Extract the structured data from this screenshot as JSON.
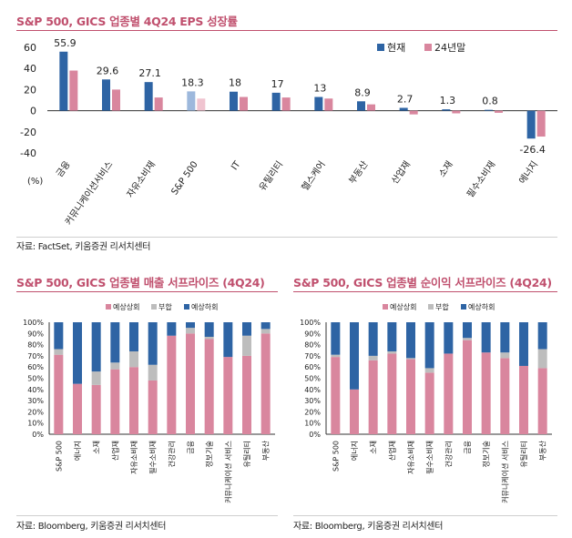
{
  "chart1": {
    "title": "S&P 500, GICS 업종별 4Q24 EPS 성장률",
    "source": "자료: FactSet, 키움증권 리서치센터",
    "y_unit": "(%)",
    "colors": {
      "current": "#2e64a4",
      "end24": "#d9869e",
      "sp_current": "#9db8dc",
      "sp_end24": "#f0c4d0"
    },
    "chart_data": {
      "type": "bar",
      "categories": [
        "금융",
        "커뮤니케이션서비스",
        "자유소비재",
        "S&P 500",
        "IT",
        "유틸리티",
        "헬스케어",
        "부동산",
        "산업재",
        "소재",
        "필수소비재",
        "에너지"
      ],
      "series": [
        {
          "name": "현재",
          "values": [
            55.9,
            29.6,
            27.1,
            18.3,
            18,
            17,
            13,
            8.9,
            2.7,
            1.3,
            0.8,
            -26.4
          ]
        },
        {
          "name": "24년말",
          "values": [
            38,
            20,
            12.5,
            11.5,
            13,
            12.5,
            11.5,
            6,
            -3.5,
            -2.5,
            -2,
            -24.5
          ]
        }
      ],
      "data_labels": [
        "55.9",
        "29.6",
        "27.1",
        "18.3",
        "18",
        "17",
        "13",
        "8.9",
        "2.7",
        "1.3",
        "0.8",
        "-26.4"
      ],
      "yticks": [
        "60",
        "40",
        "20",
        "0",
        "-20",
        "-40"
      ],
      "ylim": [
        -40,
        60
      ],
      "legend": "top-right"
    }
  },
  "chart2": {
    "title": "S&P 500, GICS 업종별 매출 서프라이즈 (4Q24)",
    "source": "자료: Bloomberg, 키움증권 리서치센터",
    "colors": {
      "beat": "#d9869e",
      "inline": "#bdbdbd",
      "miss": "#2e64a4"
    },
    "chart_data": {
      "type": "bar",
      "stacked": true,
      "categories": [
        "S&P 500",
        "에너지",
        "소재",
        "산업재",
        "자유소비재",
        "필수소비재",
        "건강관리",
        "금융",
        "정보기술",
        "커뮤니케이션 서비스",
        "유틸리티",
        "부동산"
      ],
      "series": [
        {
          "name": "예상상회",
          "values": [
            71,
            45,
            44,
            58,
            60,
            48,
            88,
            90,
            85,
            69,
            70,
            90
          ]
        },
        {
          "name": "부합",
          "values": [
            5,
            0,
            12,
            6,
            14,
            14,
            0,
            5,
            2,
            0,
            18,
            4
          ]
        },
        {
          "name": "예상하회",
          "values": [
            24,
            55,
            44,
            36,
            26,
            38,
            12,
            5,
            13,
            31,
            12,
            6
          ]
        }
      ],
      "yticks": [
        "100%",
        "90%",
        "80%",
        "70%",
        "60%",
        "50%",
        "40%",
        "30%",
        "20%",
        "10%",
        "0%"
      ],
      "ylim": [
        0,
        100
      ],
      "legend": "top"
    }
  },
  "chart3": {
    "title": "S&P 500, GICS 업종별 순이익 서프라이즈 (4Q24)",
    "source": "자료: Bloomberg, 키움증권 리서치센터",
    "colors": {
      "beat": "#d9869e",
      "inline": "#bdbdbd",
      "miss": "#2e64a4"
    },
    "chart_data": {
      "type": "bar",
      "stacked": true,
      "categories": [
        "S&P 500",
        "에너지",
        "소재",
        "산업재",
        "자유소비재",
        "필수소비재",
        "건강관리",
        "금융",
        "정보기술",
        "커뮤니케이션 서비스",
        "유틸리티",
        "부동산"
      ],
      "series": [
        {
          "name": "예상상회",
          "values": [
            69,
            40,
            66,
            72,
            67,
            55,
            72,
            84,
            73,
            68,
            61,
            59
          ]
        },
        {
          "name": "부합",
          "values": [
            2,
            0,
            4,
            2,
            1,
            4,
            0,
            2,
            0,
            5,
            0,
            17
          ]
        },
        {
          "name": "예상하회",
          "values": [
            29,
            60,
            30,
            26,
            32,
            41,
            28,
            14,
            27,
            27,
            39,
            24
          ]
        }
      ],
      "yticks": [
        "100%",
        "90%",
        "80%",
        "70%",
        "60%",
        "50%",
        "40%",
        "30%",
        "20%",
        "10%",
        "0%"
      ],
      "ylim": [
        0,
        100
      ],
      "legend": "top"
    }
  }
}
